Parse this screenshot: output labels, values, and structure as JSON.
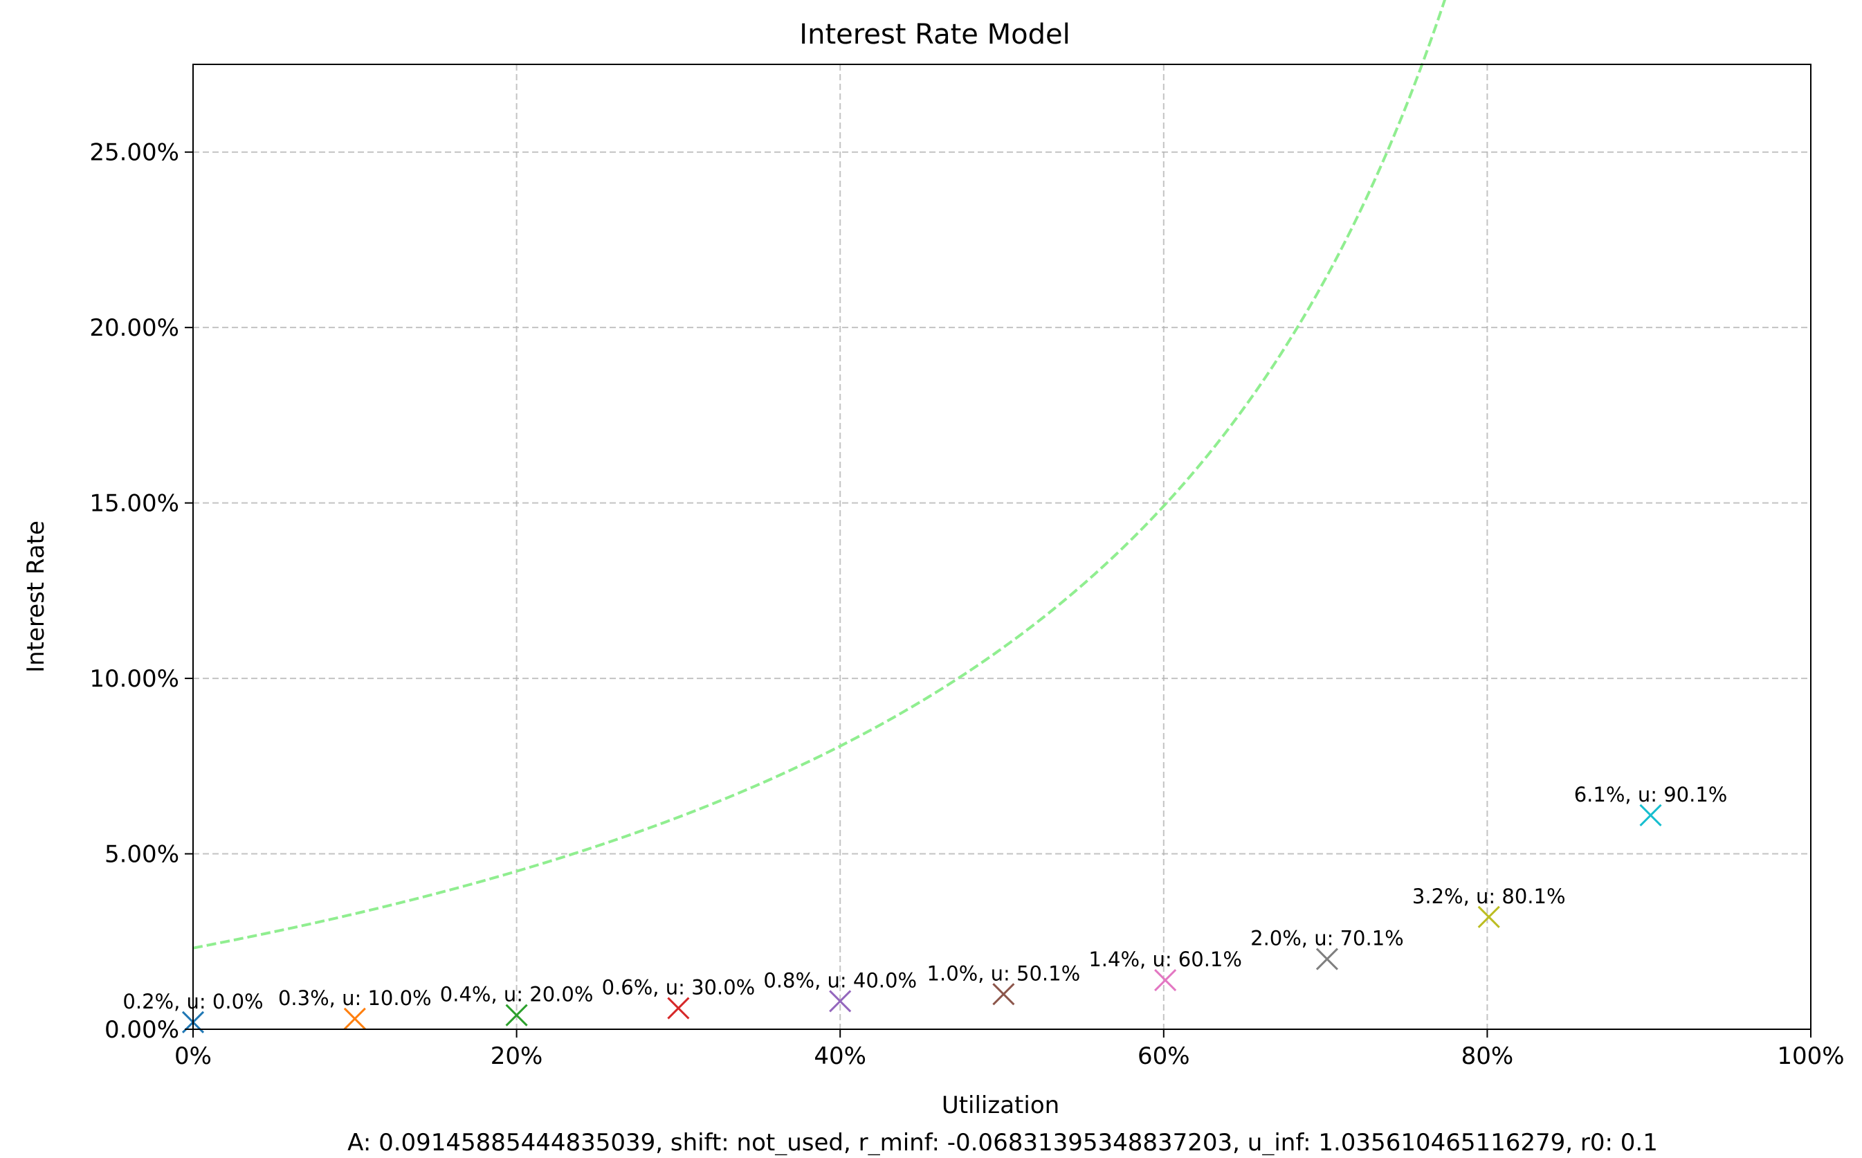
{
  "chart_data": {
    "type": "line",
    "title": "Interest Rate Model",
    "xlabel": "Utilization",
    "ylabel": "Interest Rate",
    "footnote": "A: 0.09145885444835039, shift: not_used, r_minf: -0.06831395348837203, u_inf: 1.035610465116279, r0: 0.1",
    "xlim": [
      0,
      1
    ],
    "ylim": [
      0,
      0.275
    ],
    "grid": true,
    "x_ticks": [
      0,
      0.2,
      0.4,
      0.6,
      0.8,
      1.0
    ],
    "x_tick_labels": [
      "0%",
      "20%",
      "40%",
      "60%",
      "80%",
      "100%"
    ],
    "y_ticks": [
      0,
      0.05,
      0.1,
      0.15,
      0.2,
      0.25
    ],
    "y_tick_labels": [
      "0.00%",
      "5.00%",
      "10.00%",
      "15.00%",
      "20.00%",
      "25.00%"
    ],
    "curve": {
      "name": "interest rate curve",
      "color": "#90ee90",
      "style": "dashed",
      "model": "A * u_inf / (u_inf - u) + r_minf",
      "A": 0.09145885444835039,
      "u_inf": 1.035610465116279,
      "r_minf": -0.06831395348837203,
      "x_range": [
        0,
        1
      ]
    },
    "points": [
      {
        "x": 0.0,
        "y": 0.002,
        "label": "0.2%, u: 0.0%",
        "color": "#1f77b4"
      },
      {
        "x": 0.1,
        "y": 0.003,
        "label": "0.3%, u: 10.0%",
        "color": "#ff7f0e"
      },
      {
        "x": 0.2,
        "y": 0.004,
        "label": "0.4%, u: 20.0%",
        "color": "#2ca02c"
      },
      {
        "x": 0.3,
        "y": 0.006,
        "label": "0.6%, u: 30.0%",
        "color": "#d62728"
      },
      {
        "x": 0.4,
        "y": 0.008,
        "label": "0.8%, u: 40.0%",
        "color": "#9467bd"
      },
      {
        "x": 0.501,
        "y": 0.01,
        "label": "1.0%, u: 50.1%",
        "color": "#8c564b"
      },
      {
        "x": 0.601,
        "y": 0.014,
        "label": "1.4%, u: 60.1%",
        "color": "#e377c2"
      },
      {
        "x": 0.701,
        "y": 0.02,
        "label": "2.0%, u: 70.1%",
        "color": "#7f7f7f"
      },
      {
        "x": 0.801,
        "y": 0.032,
        "label": "3.2%, u: 80.1%",
        "color": "#bcbd22"
      },
      {
        "x": 0.901,
        "y": 0.061,
        "label": "6.1%, u: 90.1%",
        "color": "#17becf"
      }
    ]
  }
}
